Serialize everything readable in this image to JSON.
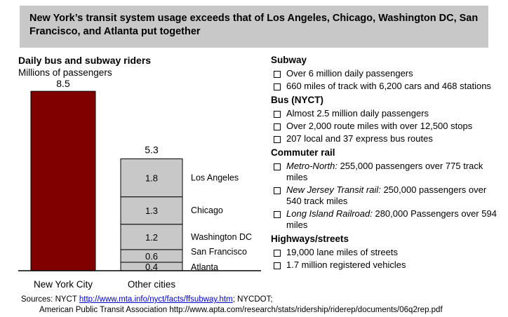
{
  "banner": {
    "text": "New York’s transit system usage exceeds that of Los Angeles, Chicago, Washington DC, San Francisco, and Atlanta put together"
  },
  "chart_data": {
    "type": "bar",
    "title": "Daily bus and subway riders",
    "subtitle": "Millions of passengers",
    "categories": [
      "New York City",
      "Other cities"
    ],
    "ylim": [
      0,
      9
    ],
    "grid": false,
    "legend": "none",
    "nyc": {
      "value": 8.5,
      "total_label": "8.5",
      "color": "#800000"
    },
    "other": {
      "total_label": "5.3",
      "color": "#c8c8c8",
      "segments": [
        {
          "name": "Atlanta",
          "value": 0.4,
          "label": "0.4"
        },
        {
          "name": "San Francisco",
          "value": 0.6,
          "label": "0.6"
        },
        {
          "name": "Washington DC",
          "value": 1.2,
          "label": "1.2"
        },
        {
          "name": "Chicago",
          "value": 1.3,
          "label": "1.3"
        },
        {
          "name": "Los Angeles",
          "value": 1.8,
          "label": "1.8"
        }
      ]
    }
  },
  "sections": {
    "subway": {
      "title": "Subway",
      "items": [
        "Over 6 million daily passengers",
        "660 miles of track with 6,200 cars and 468 stations"
      ]
    },
    "bus": {
      "title": "Bus (NYCT)",
      "items": [
        "Almost 2.5 million daily passengers",
        "Over 2,000 route miles with over 12,500 stops",
        "207 local and 37 express bus routes"
      ]
    },
    "commuter": {
      "title": "Commuter rail",
      "items": [
        {
          "name": "Metro-North:",
          "text": " 255,000 passengers over 775 track miles"
        },
        {
          "name": "New Jersey Transit rail:",
          "text": " 250,000 passengers over 540 track miles"
        },
        {
          "name": "Long Island Railroad:",
          "text": " 280,000 Passengers over 594 miles"
        }
      ]
    },
    "highways": {
      "title": "Highways/streets",
      "items": [
        "19,000 lane miles of streets",
        "1.7 million registered vehicles"
      ]
    }
  },
  "sources": {
    "prefix": "Sources: NYCT ",
    "link": "http://www.mta.info/nyct/facts/ffsubway.htm",
    "suffix": "; NYCDOT;",
    "line2": "American Public Transit Association http://www.apta.com/research/stats/ridership/riderep/documents/06q2rep.pdf"
  }
}
